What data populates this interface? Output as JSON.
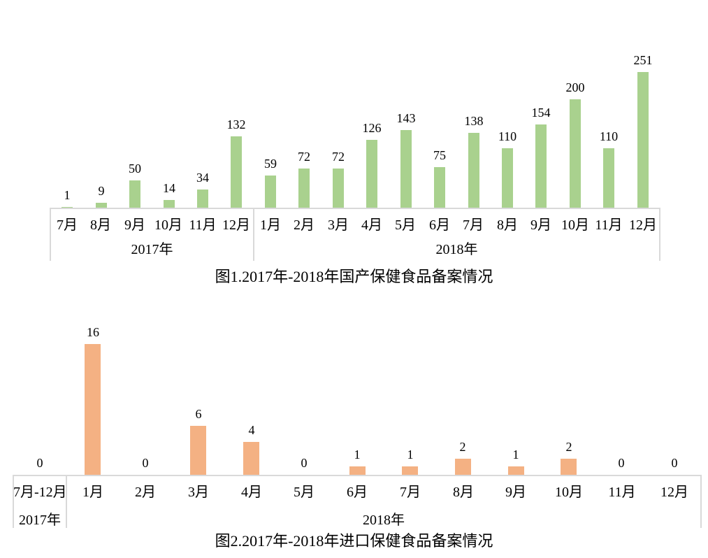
{
  "page": {
    "background": "#ffffff",
    "text_color": "#000000"
  },
  "chart_data": [
    {
      "type": "bar",
      "title": "图1.2017年-2018年国产保健食品备案情况",
      "bar_color": "#a9d18e",
      "axis_color": "#d9d9d9",
      "text_color": "#000000",
      "categories": [
        "7月",
        "8月",
        "9月",
        "10月",
        "11月",
        "12月",
        "1月",
        "2月",
        "3月",
        "4月",
        "5月",
        "6月",
        "7月",
        "8月",
        "9月",
        "10月",
        "11月",
        "12月"
      ],
      "values": [
        1,
        9,
        50,
        14,
        34,
        132,
        59,
        72,
        72,
        126,
        143,
        75,
        138,
        110,
        154,
        200,
        110,
        251
      ],
      "groups": [
        {
          "label": "2017年",
          "span": 6
        },
        {
          "label": "2018年",
          "span": 12
        }
      ],
      "ylim": [
        0,
        260
      ],
      "grid": false,
      "legend": false,
      "data_labels": true,
      "xlabel": "",
      "ylabel": ""
    },
    {
      "type": "bar",
      "title": "图2.2017年-2018年进口保健食品备案情况",
      "bar_color": "#f4b183",
      "axis_color": "#d9d9d9",
      "text_color": "#000000",
      "categories": [
        "7月-12月",
        "1月",
        "2月",
        "3月",
        "4月",
        "5月",
        "6月",
        "7月",
        "8月",
        "9月",
        "10月",
        "11月",
        "12月"
      ],
      "values": [
        0,
        16,
        0,
        6,
        4,
        0,
        1,
        1,
        2,
        1,
        2,
        0,
        0
      ],
      "groups": [
        {
          "label": "2017年",
          "span": 1
        },
        {
          "label": "2018年",
          "span": 12
        }
      ],
      "ylim": [
        0,
        17
      ],
      "grid": false,
      "legend": false,
      "data_labels": true,
      "xlabel": "",
      "ylabel": ""
    }
  ]
}
